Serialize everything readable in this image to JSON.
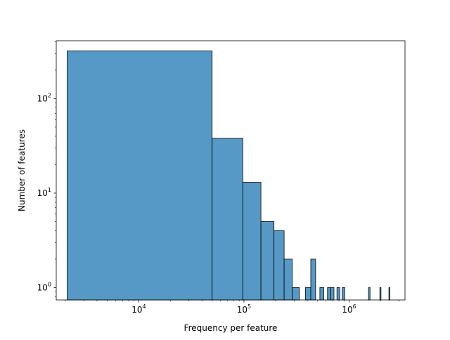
{
  "chart_data": {
    "type": "bar",
    "xlabel": "Frequency per feature",
    "ylabel": "Number of features",
    "xscale": "log",
    "yscale": "log",
    "xlim": [
      1640,
      3400000
    ],
    "ylim": [
      0.74,
      410
    ],
    "grid": false,
    "bar_color": "#5799c6",
    "edge_color": "#000000",
    "x_ticks": [
      {
        "value": 10000,
        "base": "10",
        "exp": "4"
      },
      {
        "value": 100000,
        "base": "10",
        "exp": "5"
      },
      {
        "value": 1000000,
        "base": "10",
        "exp": "6"
      }
    ],
    "y_ticks": [
      {
        "value": 1,
        "base": "10",
        "exp": "0"
      },
      {
        "value": 10,
        "base": "10",
        "exp": "1"
      },
      {
        "value": 100,
        "base": "10",
        "exp": "2"
      }
    ],
    "bins": [
      {
        "x0": 2080,
        "x1": 49800,
        "count": 320
      },
      {
        "x0": 49800,
        "x1": 97500,
        "count": 38
      },
      {
        "x0": 97500,
        "x1": 145000,
        "count": 13
      },
      {
        "x0": 145000,
        "x1": 193000,
        "count": 5
      },
      {
        "x0": 193000,
        "x1": 241000,
        "count": 4
      },
      {
        "x0": 241000,
        "x1": 288000,
        "count": 2
      },
      {
        "x0": 288000,
        "x1": 336000,
        "count": 1
      },
      {
        "x0": 384000,
        "x1": 432000,
        "count": 1
      },
      {
        "x0": 432000,
        "x1": 480000,
        "count": 2
      },
      {
        "x0": 527000,
        "x1": 575000,
        "count": 1
      },
      {
        "x0": 623000,
        "x1": 670000,
        "count": 1
      },
      {
        "x0": 670000,
        "x1": 718000,
        "count": 1
      },
      {
        "x0": 766000,
        "x1": 814000,
        "count": 1
      },
      {
        "x0": 861000,
        "x1": 909000,
        "count": 1
      },
      {
        "x0": 1530000,
        "x1": 1580000,
        "count": 1
      },
      {
        "x0": 1960000,
        "x1": 2010000,
        "count": 1
      },
      {
        "x0": 2390000,
        "x1": 2440000,
        "count": 1
      }
    ]
  }
}
